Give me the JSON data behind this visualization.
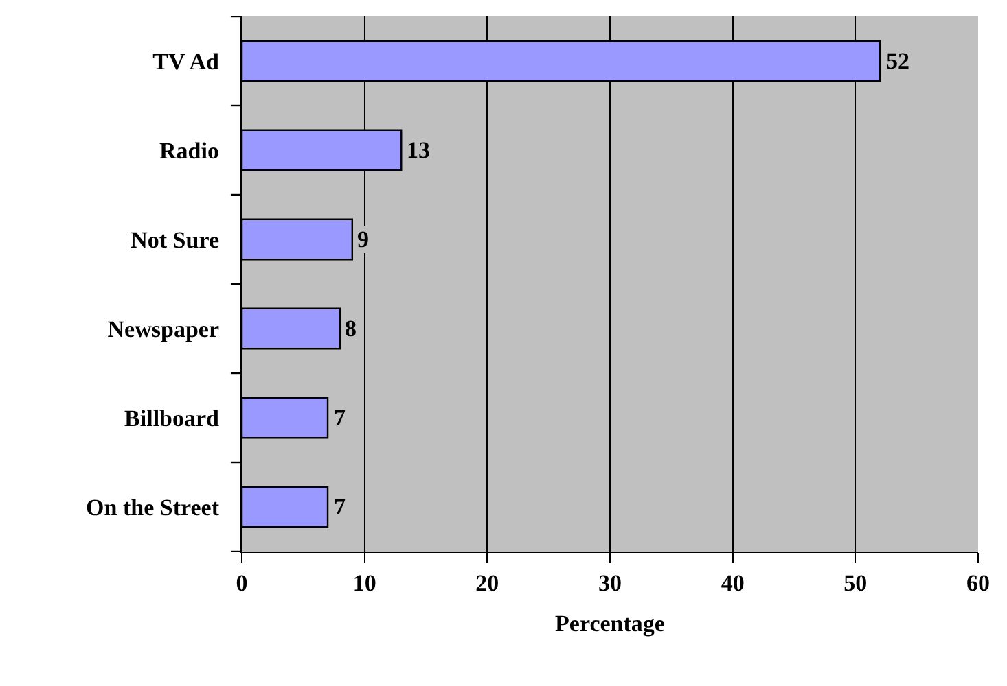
{
  "chart_data": {
    "type": "bar",
    "orientation": "horizontal",
    "xlabel": "Percentage",
    "categories": [
      "TV Ad",
      "Radio",
      "Not Sure",
      "Newspaper",
      "Billboard",
      "On the Street"
    ],
    "values": [
      52,
      13,
      9,
      8,
      7,
      7
    ],
    "color": "#9999ff",
    "xlim": [
      0,
      60
    ],
    "xticks": [
      0,
      10,
      20,
      30,
      40,
      50,
      60
    ],
    "grid": "x",
    "data_labels": true
  }
}
